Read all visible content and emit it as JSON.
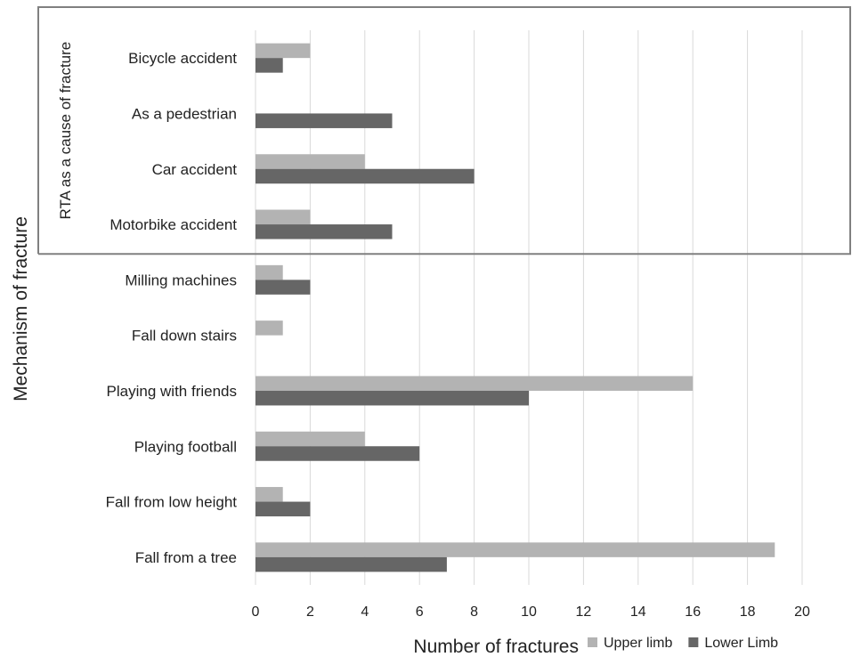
{
  "chart_data": {
    "type": "bar",
    "orientation": "horizontal",
    "ylabel": "Mechanism of fracture",
    "group_label": "RTA as a cause of fracture",
    "xlabel": "Number of fractures",
    "xlim": [
      0,
      20
    ],
    "xticks": [
      "0",
      "2",
      "4",
      "6",
      "8",
      "10",
      "12",
      "14",
      "16",
      "18",
      "20"
    ],
    "grid": true,
    "legend_position": "bottom",
    "categories": [
      "Bicycle accident",
      "As a pedestrian",
      "Car accident",
      "Motorbike accident",
      "Milling machines",
      "Fall down stairs",
      "Playing with friends",
      "Playing football",
      "Fall from low height",
      "Fall from a tree"
    ],
    "series": [
      {
        "name": "Upper limb",
        "color": "#b3b3b3",
        "values": [
          2,
          0,
          4,
          2,
          1,
          1,
          16,
          4,
          1,
          19
        ]
      },
      {
        "name": "Lower Limb",
        "color": "#666666",
        "values": [
          1,
          5,
          8,
          5,
          2,
          0,
          10,
          6,
          2,
          7
        ]
      }
    ]
  }
}
